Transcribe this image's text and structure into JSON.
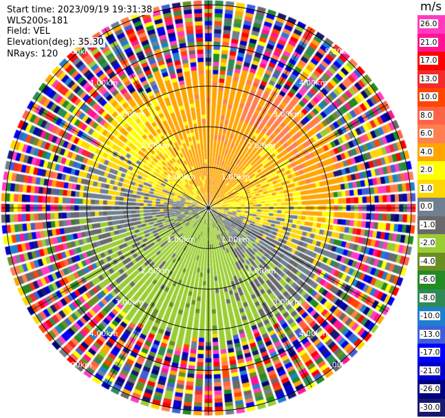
{
  "header": {
    "start_time": "Start time: 2023/09/19 19:31:38",
    "instrument": "WLS200s-181",
    "field": "Field: VEL",
    "elevation": "Elevation(deg): 35.30",
    "nrays": "NRays: 120"
  },
  "chart_data": {
    "type": "heatmap",
    "projection": "polar (PPI)",
    "field": "VEL",
    "n_rays": 120,
    "elevation_deg": 35.3,
    "max_range_km": 5.1,
    "range_rings_km": [
      1,
      2,
      3,
      4,
      5
    ],
    "range_ring_labels": [
      "1.00km",
      "2.00km",
      "3.00km",
      "4.00km",
      "5.00km"
    ],
    "radial_lines_deg": [
      0,
      30,
      60,
      90,
      120,
      150,
      180,
      210,
      240,
      270,
      300,
      330
    ],
    "colorbar": {
      "unit": "m/s",
      "ticks": [
        "26.0",
        "21.0",
        "17.0",
        "13.0",
        "10.0",
        "8.0",
        "6.0",
        "4.0",
        "2.0",
        "1.0",
        "0.0",
        "-1.0",
        "-2.0",
        "-4.0",
        "-6.0",
        "-8.0",
        "-10.0",
        "-13.0",
        "-17.0",
        "-21.0",
        "-26.0",
        "-30.0"
      ],
      "colors": [
        "#ff3cc0",
        "#ff1493",
        "#ff0000",
        "#f52a2a",
        "#ff4500",
        "#ff6347",
        "#ff7f50",
        "#ffa500",
        "#ffff00",
        "#ffd700",
        "#708090",
        "#696969",
        "#9acd32",
        "#6b8e23",
        "#228b22",
        "#2e8b57",
        "#1e7fd0",
        "#3f5fd8",
        "#0000ff",
        "#0000c8",
        "#000080",
        "#191970"
      ]
    },
    "pattern": {
      "inner_field_km": [
        0,
        3.2
      ],
      "positive_sector": "north / north-east (yellow, 1 to 6 m/s)",
      "negative_sector": "south / south-west (green, -1 to -6 m/s)",
      "outer_field": "noise beyond ~3.2 km"
    }
  }
}
